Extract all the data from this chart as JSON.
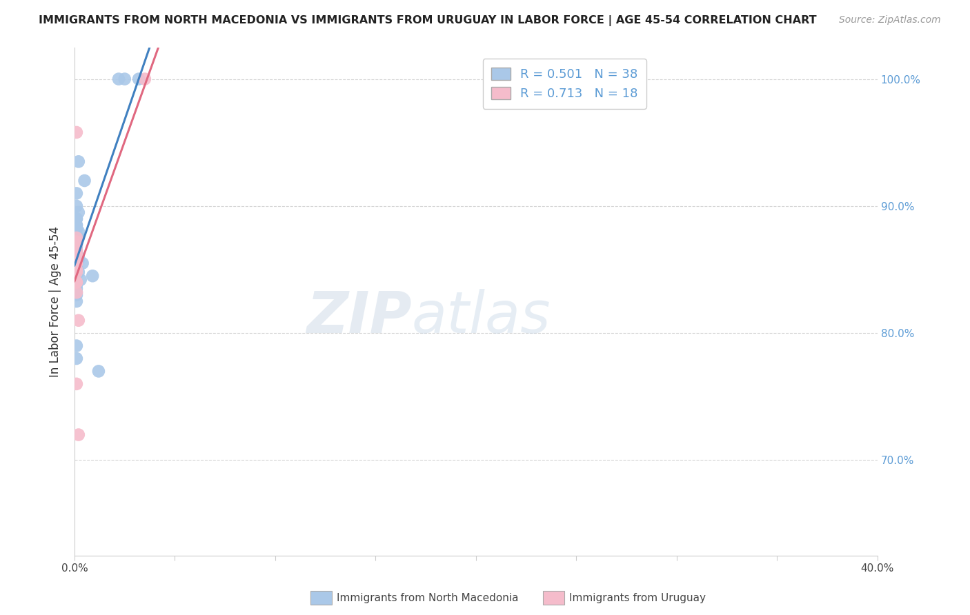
{
  "title": "IMMIGRANTS FROM NORTH MACEDONIA VS IMMIGRANTS FROM URUGUAY IN LABOR FORCE | AGE 45-54 CORRELATION CHART",
  "source": "Source: ZipAtlas.com",
  "ylabel": "In Labor Force | Age 45-54",
  "xmin": 0.0,
  "xmax": 0.4,
  "ymin": 0.625,
  "ymax": 1.025,
  "macedonia_R": 0.501,
  "macedonia_N": 38,
  "uruguay_R": 0.713,
  "uruguay_N": 18,
  "legend_label_1": "Immigrants from North Macedonia",
  "legend_label_2": "Immigrants from Uruguay",
  "macedonia_color": "#aac8e8",
  "uruguay_color": "#f5bccb",
  "macedonia_line_color": "#4080c0",
  "uruguay_line_color": "#e06880",
  "background_color": "#ffffff",
  "grid_color": "#cccccc",
  "watermark_zip": "ZIP",
  "watermark_atlas": "atlas",
  "right_axis_color": "#5b9bd5",
  "macedonia_x": [
    0.002,
    0.005,
    0.001,
    0.001,
    0.002,
    0.001,
    0.001,
    0.001,
    0.001,
    0.001,
    0.002,
    0.002,
    0.001,
    0.001,
    0.001,
    0.001,
    0.001,
    0.001,
    0.002,
    0.002,
    0.004,
    0.001,
    0.001,
    0.002,
    0.009,
    0.003,
    0.001,
    0.001,
    0.001,
    0.001,
    0.001,
    0.001,
    0.001,
    0.001,
    0.012,
    0.022,
    0.025,
    0.032
  ],
  "macedonia_y": [
    0.935,
    0.92,
    0.91,
    0.9,
    0.895,
    0.89,
    0.89,
    0.885,
    0.885,
    0.882,
    0.88,
    0.875,
    0.875,
    0.872,
    0.87,
    0.868,
    0.865,
    0.862,
    0.86,
    0.858,
    0.855,
    0.852,
    0.85,
    0.848,
    0.845,
    0.842,
    0.84,
    0.838,
    0.835,
    0.832,
    0.83,
    0.825,
    0.79,
    0.78,
    0.77,
    1.0,
    1.0,
    1.0
  ],
  "uruguay_x": [
    0.001,
    0.002,
    0.002,
    0.001,
    0.001,
    0.001,
    0.001,
    0.001,
    0.001,
    0.001,
    0.001,
    0.001,
    0.001,
    0.001,
    0.001,
    0.001,
    0.001,
    0.035
  ],
  "uruguay_y": [
    0.76,
    0.72,
    0.81,
    0.87,
    0.862,
    0.855,
    0.85,
    0.862,
    0.855,
    0.848,
    0.84,
    0.832,
    0.84,
    0.875,
    0.865,
    0.872,
    0.958,
    1.0
  ],
  "xtick_labels": [
    "0.0%",
    "",
    "",
    "",
    "",
    "",
    "",
    "",
    "40.0%"
  ],
  "xtick_values": [
    0.0,
    0.05,
    0.1,
    0.15,
    0.2,
    0.25,
    0.3,
    0.35,
    0.4
  ],
  "ytick_values": [
    0.7,
    0.8,
    0.9,
    1.0
  ],
  "ytick_labels_right": [
    "70.0%",
    "80.0%",
    "90.0%",
    "100.0%"
  ],
  "title_fontsize": 11.5,
  "source_fontsize": 10,
  "axis_label_fontsize": 11,
  "tick_fontsize": 11
}
